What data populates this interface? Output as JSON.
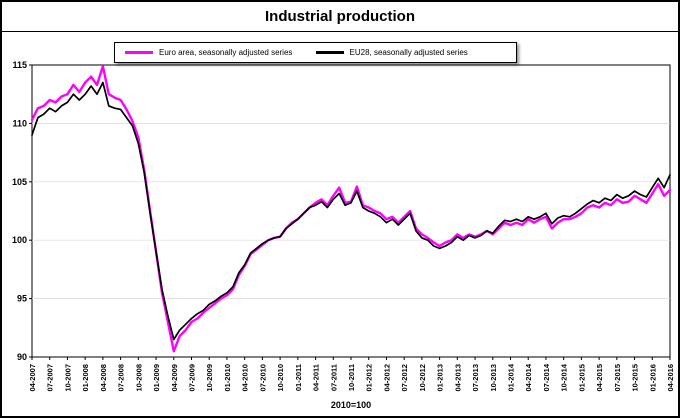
{
  "chart_data": {
    "type": "line",
    "title": "Industrial production",
    "xlabel": "2010=100",
    "ylabel": "",
    "ylim": [
      90,
      115
    ],
    "y_ticks": [
      90,
      95,
      100,
      105,
      110,
      115
    ],
    "grid": true,
    "legend_position": "top",
    "frequency": "monthly",
    "x_start": "04-2007",
    "x_end": "04-2016",
    "x_ticks": [
      "04-2007",
      "07-2007",
      "10-2007",
      "01-2008",
      "04-2008",
      "07-2008",
      "10-2008",
      "01-2009",
      "04-2009",
      "07-2009",
      "10-2009",
      "01-2010",
      "04-2010",
      "07-2010",
      "10-2010",
      "01-2011",
      "04-2011",
      "07-2011",
      "10-2011",
      "01-2012",
      "04-2012",
      "07-2012",
      "10-2012",
      "01-2013",
      "04-2013",
      "07-2013",
      "10-2013",
      "01-2014",
      "04-2014",
      "07-2014",
      "10-2014",
      "01-2015",
      "04-2015",
      "07-2015",
      "10-2015",
      "01-2016",
      "04-2016"
    ],
    "x_tick_every_n_points": 3,
    "series": [
      {
        "name": "Euro area, seasonally adjusted series",
        "color": "#FF00FF",
        "values": [
          110.3,
          111.3,
          111.5,
          112.0,
          111.8,
          112.3,
          112.5,
          113.3,
          112.7,
          113.5,
          114.0,
          113.3,
          114.9,
          112.5,
          112.2,
          112.0,
          111.2,
          110.2,
          108.8,
          106.0,
          102.5,
          99.0,
          95.5,
          93.0,
          90.5,
          91.8,
          92.3,
          93.0,
          93.3,
          93.8,
          94.2,
          94.6,
          95.0,
          95.3,
          95.8,
          97.0,
          97.8,
          98.8,
          99.2,
          99.6,
          100.0,
          100.2,
          100.3,
          101.0,
          101.5,
          101.8,
          102.3,
          102.8,
          103.2,
          103.5,
          103.0,
          103.8,
          104.5,
          103.2,
          103.3,
          104.6,
          103.0,
          102.8,
          102.5,
          102.3,
          101.8,
          102.0,
          101.5,
          102.0,
          102.5,
          101.0,
          100.5,
          100.2,
          99.8,
          99.5,
          99.8,
          100.0,
          100.5,
          100.2,
          100.5,
          100.3,
          100.5,
          100.8,
          100.5,
          101.0,
          101.5,
          101.3,
          101.5,
          101.3,
          101.8,
          101.5,
          101.8,
          102.0,
          101.0,
          101.5,
          101.8,
          101.8,
          102.0,
          102.3,
          102.8,
          103.0,
          102.8,
          103.2,
          103.0,
          103.5,
          103.2,
          103.3,
          103.8,
          103.5,
          103.2,
          104.0,
          104.8,
          103.8,
          104.3
        ]
      },
      {
        "name": "EU28, seasonally adjusted series",
        "color": "#000000",
        "values": [
          109.0,
          110.5,
          110.8,
          111.3,
          111.0,
          111.5,
          111.8,
          112.5,
          112.0,
          112.5,
          113.2,
          112.5,
          113.5,
          111.5,
          111.3,
          111.2,
          110.5,
          109.8,
          108.3,
          105.8,
          102.3,
          99.0,
          95.8,
          93.5,
          91.5,
          92.3,
          92.8,
          93.3,
          93.7,
          94.0,
          94.5,
          94.8,
          95.2,
          95.5,
          96.0,
          97.2,
          97.9,
          98.9,
          99.3,
          99.7,
          100.0,
          100.2,
          100.3,
          101.0,
          101.4,
          101.8,
          102.3,
          102.8,
          103.0,
          103.3,
          102.8,
          103.5,
          104.0,
          103.0,
          103.2,
          104.2,
          102.8,
          102.5,
          102.3,
          102.0,
          101.5,
          101.8,
          101.3,
          101.8,
          102.3,
          100.8,
          100.2,
          100.0,
          99.5,
          99.3,
          99.5,
          99.8,
          100.3,
          100.0,
          100.4,
          100.2,
          100.4,
          100.8,
          100.6,
          101.2,
          101.7,
          101.6,
          101.8,
          101.6,
          102.0,
          101.8,
          102.0,
          102.3,
          101.4,
          101.9,
          102.1,
          102.0,
          102.3,
          102.7,
          103.1,
          103.4,
          103.2,
          103.6,
          103.4,
          103.9,
          103.6,
          103.8,
          104.2,
          103.9,
          103.7,
          104.5,
          105.3,
          104.5,
          105.6
        ]
      }
    ]
  }
}
